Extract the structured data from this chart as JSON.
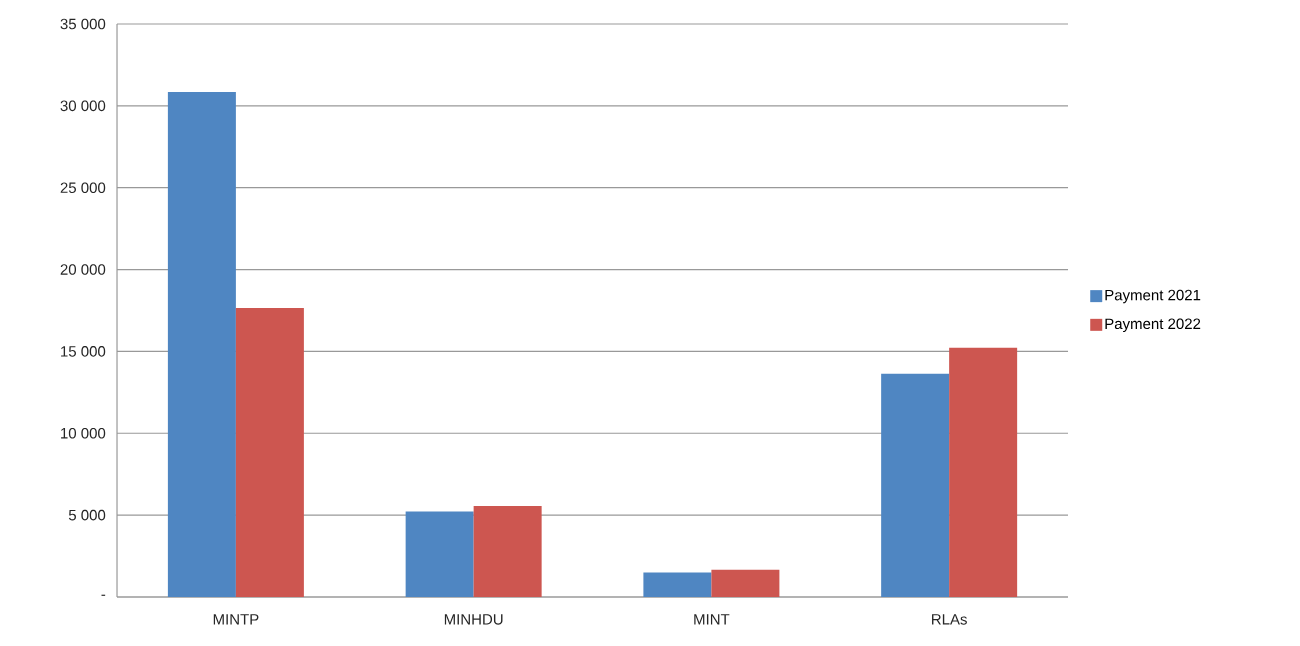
{
  "chart_data": {
    "type": "bar",
    "categories": [
      "MINTP",
      "MINHDU",
      "MINT",
      "RLAs"
    ],
    "series": [
      {
        "name": "Payment 2021",
        "color": "#4f86c2",
        "values": [
          30850,
          5220,
          1500,
          13630
        ]
      },
      {
        "name": "Payment 2022",
        "color": "#cd5650",
        "values": [
          17650,
          5550,
          1670,
          15220
        ]
      }
    ],
    "ylim": [
      0,
      35000
    ],
    "yticks": [
      {
        "value": 0,
        "label": "-"
      },
      {
        "value": 5000,
        "label": "5 000"
      },
      {
        "value": 10000,
        "label": "10 000"
      },
      {
        "value": 15000,
        "label": "15 000"
      },
      {
        "value": 20000,
        "label": "20 000"
      },
      {
        "value": 25000,
        "label": "25 000"
      },
      {
        "value": 30000,
        "label": "30 000"
      },
      {
        "value": 35000,
        "label": "35 000"
      }
    ],
    "grid": "y",
    "legend": "right"
  }
}
